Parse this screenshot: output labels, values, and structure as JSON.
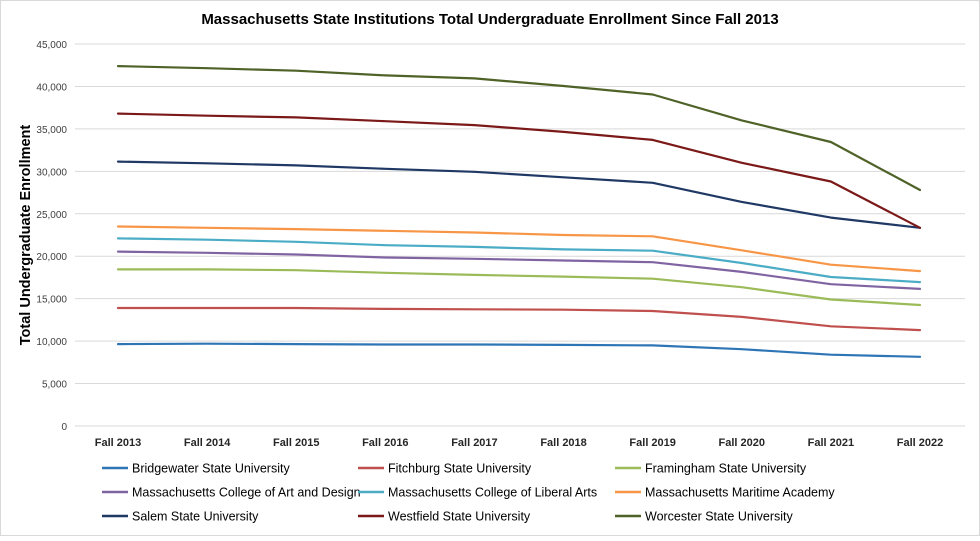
{
  "chart_data": {
    "type": "line",
    "title": "Massachusetts State Institutions Total Undergraduate Enrollment Since Fall 2013",
    "xlabel": "",
    "ylabel": "Total Undergraduate Enrollment",
    "ylim": [
      0,
      45000
    ],
    "y_ticks": [
      {
        "value": 0,
        "label": "0"
      },
      {
        "value": 5000,
        "label": "5,000"
      },
      {
        "value": 10000,
        "label": "10,000"
      },
      {
        "value": 15000,
        "label": "15,000"
      },
      {
        "value": 20000,
        "label": "20,000"
      },
      {
        "value": 25000,
        "label": "25,000"
      },
      {
        "value": 30000,
        "label": "30,000"
      },
      {
        "value": 35000,
        "label": "35,000"
      },
      {
        "value": 40000,
        "label": "40,000"
      },
      {
        "value": 45000,
        "label": "45,000"
      }
    ],
    "grid": true,
    "legend_position": "bottom",
    "categories": [
      "Fall 2013",
      "Fall 2014",
      "Fall 2015",
      "Fall 2016",
      "Fall 2017",
      "Fall 2018",
      "Fall 2019",
      "Fall 2020",
      "Fall 2021",
      "Fall 2022"
    ],
    "series": [
      {
        "name": "Bridgewater State University",
        "color": "#2e75b6",
        "values": [
          9650,
          9700,
          9650,
          9600,
          9600,
          9550,
          9500,
          9050,
          8400,
          8150
        ]
      },
      {
        "name": "Fitchburg State University",
        "color": "#c0504d",
        "values": [
          13900,
          13900,
          13900,
          13800,
          13750,
          13700,
          13550,
          12850,
          11750,
          11300
        ]
      },
      {
        "name": "Framingham State University",
        "color": "#9bbb59",
        "values": [
          18450,
          18450,
          18350,
          18050,
          17800,
          17600,
          17350,
          16350,
          14900,
          14250
        ]
      },
      {
        "name": "Massachusetts College of Art and Design",
        "color": "#8064a2",
        "values": [
          20550,
          20400,
          20200,
          19850,
          19700,
          19500,
          19300,
          18150,
          16700,
          16150
        ]
      },
      {
        "name": "Massachusetts College of Liberal Arts",
        "color": "#4bacc6",
        "values": [
          22100,
          21950,
          21700,
          21300,
          21100,
          20800,
          20650,
          19200,
          17550,
          16950
        ]
      },
      {
        "name": "Massachusetts Maritime Academy",
        "color": "#f79646",
        "values": [
          23500,
          23350,
          23200,
          23000,
          22800,
          22500,
          22350,
          20700,
          19000,
          18250
        ]
      },
      {
        "name": "Salem State University",
        "color": "#1f3864",
        "values": [
          31150,
          30950,
          30700,
          30300,
          29950,
          29300,
          28650,
          26400,
          24550,
          23350
        ]
      },
      {
        "name": "Westfield State University",
        "color": "#7b1818",
        "values": [
          36800,
          36550,
          36350,
          35900,
          35450,
          34650,
          33700,
          31000,
          28800,
          23350
        ]
      },
      {
        "name": "Worcester State University",
        "color": "#4f6228",
        "values": [
          42400,
          42150,
          41850,
          41300,
          40950,
          40050,
          39050,
          36000,
          33450,
          27800
        ]
      }
    ]
  }
}
